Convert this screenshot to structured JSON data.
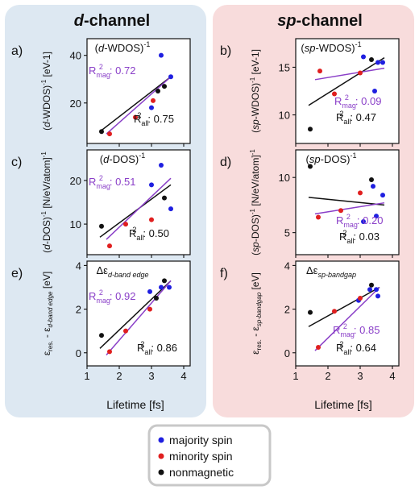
{
  "columns": [
    {
      "title_italic": "d",
      "title_rest": "-channel",
      "xlabel": "Lifetime [fs]",
      "bg": "#dde8f2"
    },
    {
      "title_italic": "sp",
      "title_rest": "-channel",
      "xlabel": "Lifetime [fs]",
      "bg": "#f8dcdc"
    }
  ],
  "colors": {
    "majority": "#1f1fe0",
    "minority": "#e01f1f",
    "nonmagnetic": "#111111",
    "mag_fit": "#8a3fc8",
    "all_fit": "#111111"
  },
  "legend": [
    {
      "key": "majority",
      "label": "majority spin"
    },
    {
      "key": "minority",
      "label": "minority spin"
    },
    {
      "key": "nonmagnetic",
      "label": "nonmagnetic"
    }
  ],
  "chart_data": [
    {
      "type": "scatter",
      "panel": "a)",
      "title": "(d-WDOS)-1",
      "ylabel": "(d-WDOS)-1 [eV-1]",
      "xlim": [
        1,
        4.2
      ],
      "ylim": [
        3,
        47
      ],
      "xticks": [
        "1",
        "2",
        "3",
        "4"
      ],
      "yticks": [
        "20",
        "40"
      ],
      "ytick_values": [
        20,
        40
      ],
      "r_mag_label": "Rmag2: 0.72",
      "r_all_label": "Rall2: 0.75",
      "series": [
        {
          "name": "majority spin",
          "x": [
            3.0,
            3.3,
            3.6
          ],
          "y": [
            18,
            40,
            31
          ]
        },
        {
          "name": "minority spin",
          "x": [
            1.7,
            2.5,
            3.05
          ],
          "y": [
            7,
            14,
            21
          ]
        },
        {
          "name": "nonmagnetic",
          "x": [
            1.45,
            3.2,
            3.4
          ],
          "y": [
            8,
            25,
            27
          ]
        }
      ],
      "fits": {
        "magnetic": {
          "x": [
            1.6,
            3.6
          ],
          "y": [
            7,
            31
          ]
        },
        "all": {
          "x": [
            1.4,
            3.6
          ],
          "y": [
            8,
            31
          ]
        }
      }
    },
    {
      "type": "scatter",
      "panel": "b)",
      "title": "(sp-WDOS)-1",
      "ylabel": "(sp-WDOS)-1 [eV-1]",
      "xlim": [
        1,
        4.2
      ],
      "ylim": [
        7,
        18
      ],
      "xticks": [
        "1",
        "2",
        "3",
        "4"
      ],
      "yticks": [
        "10",
        "15"
      ],
      "ytick_values": [
        10,
        15
      ],
      "r_mag_label": "Rmag2: 0.09",
      "r_all_label": "Rall2: 0.47",
      "series": [
        {
          "name": "majority spin",
          "x": [
            3.1,
            3.55,
            3.45,
            3.7
          ],
          "y": [
            16.1,
            15.5,
            12.5,
            15.5
          ]
        },
        {
          "name": "minority spin",
          "x": [
            1.75,
            2.2,
            3.0
          ],
          "y": [
            14.6,
            12.2,
            14.4
          ]
        },
        {
          "name": "nonmagnetic",
          "x": [
            1.45,
            3.35
          ],
          "y": [
            8.5,
            15.8
          ]
        }
      ],
      "fits": {
        "magnetic": {
          "x": [
            1.6,
            3.75
          ],
          "y": [
            13.7,
            14.9
          ]
        },
        "all": {
          "x": [
            1.4,
            3.75
          ],
          "y": [
            11.0,
            16.0
          ]
        }
      }
    },
    {
      "type": "scatter",
      "panel": "c)",
      "title": "(d-DOS)-1",
      "ylabel": "(d-DOS)-1 [N/eV/atom]-1",
      "xlim": [
        1,
        4.2
      ],
      "ylim": [
        3,
        27
      ],
      "xticks": [
        "1",
        "2",
        "3",
        "4"
      ],
      "yticks": [
        "10",
        "20"
      ],
      "ytick_values": [
        10,
        20
      ],
      "r_mag_label": "Rmag2: 0.51",
      "r_all_label": "Rall2: 0.50",
      "series": [
        {
          "name": "majority spin",
          "x": [
            3.0,
            3.3,
            3.6
          ],
          "y": [
            19,
            23.5,
            13.5
          ]
        },
        {
          "name": "minority spin",
          "x": [
            1.7,
            2.2,
            3.0
          ],
          "y": [
            5,
            10,
            11
          ]
        },
        {
          "name": "nonmagnetic",
          "x": [
            1.45,
            3.4
          ],
          "y": [
            9.5,
            16
          ]
        }
      ],
      "fits": {
        "magnetic": {
          "x": [
            1.6,
            3.6
          ],
          "y": [
            6.5,
            20.5
          ]
        },
        "all": {
          "x": [
            1.4,
            3.6
          ],
          "y": [
            7.0,
            19.0
          ]
        }
      }
    },
    {
      "type": "scatter",
      "panel": "d)",
      "title": "(sp-DOS)-1",
      "ylabel": "(sp-DOS)-1 [N/eV/atom]-1",
      "xlim": [
        1,
        4.2
      ],
      "ylim": [
        3,
        12.5
      ],
      "xticks": [
        "1",
        "2",
        "3",
        "4"
      ],
      "yticks": [
        "5",
        "10"
      ],
      "ytick_values": [
        5,
        10
      ],
      "r_mag_label": "Rmag2: 0.20",
      "r_all_label": "Rall2: 0.03",
      "series": [
        {
          "name": "majority spin",
          "x": [
            3.1,
            3.5,
            3.7,
            3.4
          ],
          "y": [
            6.0,
            6.5,
            8.4,
            9.2
          ]
        },
        {
          "name": "minority spin",
          "x": [
            1.7,
            2.4,
            3.0
          ],
          "y": [
            6.4,
            7.0,
            8.6
          ]
        },
        {
          "name": "nonmagnetic",
          "x": [
            1.45,
            3.35
          ],
          "y": [
            11.0,
            9.8
          ]
        }
      ],
      "fits": {
        "magnetic": {
          "x": [
            1.6,
            3.75
          ],
          "y": [
            6.7,
            7.7
          ]
        },
        "all": {
          "x": [
            1.4,
            3.75
          ],
          "y": [
            8.2,
            7.5
          ]
        }
      }
    },
    {
      "type": "scatter",
      "panel": "e)",
      "title": "Δεd-band edge",
      "ylabel": "εres. - εd-band edge [eV]",
      "xlim": [
        1,
        4.2
      ],
      "ylim": [
        -0.6,
        4.2
      ],
      "xticks": [
        "1",
        "2",
        "3",
        "4"
      ],
      "yticks": [
        "0",
        "2",
        "4"
      ],
      "ytick_values": [
        0,
        2,
        4
      ],
      "r_mag_label": "Rmag2: 0.92",
      "r_all_label": "Rall2: 0.86",
      "series": [
        {
          "name": "majority spin",
          "x": [
            2.95,
            3.3,
            3.55
          ],
          "y": [
            2.8,
            3.0,
            3.0
          ]
        },
        {
          "name": "minority spin",
          "x": [
            1.7,
            2.2,
            2.95
          ],
          "y": [
            0.05,
            1.0,
            2.0
          ]
        },
        {
          "name": "nonmagnetic",
          "x": [
            1.45,
            3.15,
            3.4
          ],
          "y": [
            0.8,
            2.5,
            3.3
          ]
        }
      ],
      "fits": {
        "magnetic": {
          "x": [
            1.6,
            3.6
          ],
          "y": [
            -0.1,
            3.3
          ]
        },
        "all": {
          "x": [
            1.4,
            3.6
          ],
          "y": [
            0.2,
            3.3
          ]
        }
      }
    },
    {
      "type": "scatter",
      "panel": "f)",
      "title": "Δεsp-bandgap",
      "ylabel": "εres. - εsp-bandgap [eV]",
      "xlim": [
        1,
        4.2
      ],
      "ylim": [
        -0.6,
        4.2
      ],
      "xticks": [
        "1",
        "2",
        "3",
        "4"
      ],
      "yticks": [
        "0",
        "2",
        "4"
      ],
      "ytick_values": [
        0,
        2,
        4
      ],
      "r_mag_label": "Rmag2: 0.85",
      "r_all_label": "Rall2: 0.64",
      "series": [
        {
          "name": "majority spin",
          "x": [
            2.95,
            3.3,
            3.5,
            3.55
          ],
          "y": [
            2.4,
            2.9,
            2.9,
            2.6
          ]
        },
        {
          "name": "minority spin",
          "x": [
            1.7,
            2.2,
            3.0
          ],
          "y": [
            0.25,
            1.9,
            2.5
          ]
        },
        {
          "name": "nonmagnetic",
          "x": [
            1.45,
            3.35
          ],
          "y": [
            1.85,
            3.1
          ]
        }
      ],
      "fits": {
        "magnetic": {
          "x": [
            1.6,
            3.6
          ],
          "y": [
            0.1,
            3.0
          ]
        },
        "all": {
          "x": [
            1.4,
            3.6
          ],
          "y": [
            1.2,
            3.0
          ]
        }
      }
    }
  ]
}
